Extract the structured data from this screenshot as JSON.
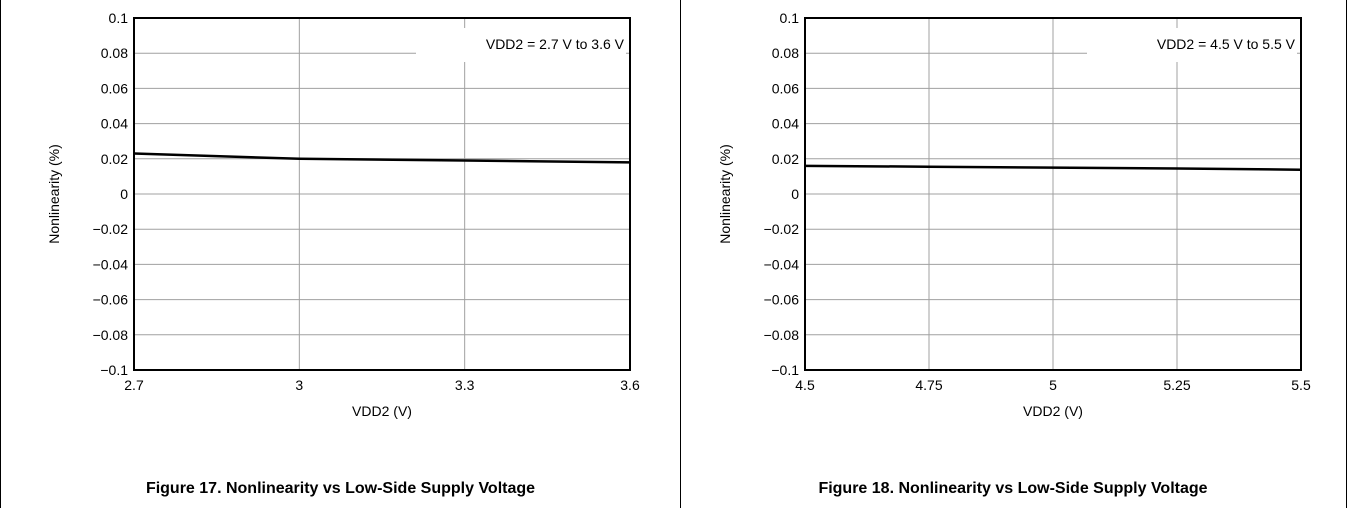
{
  "chart_data": [
    {
      "type": "line",
      "xlabel": "VDD2 (V)",
      "ylabel": "Nonlinearity (%)",
      "xlim": [
        2.7,
        3.6
      ],
      "ylim": [
        -0.1,
        0.1
      ],
      "xticks": [
        "2.7",
        "3",
        "3.3",
        "3.6"
      ],
      "xtick_values": [
        2.7,
        3.0,
        3.3,
        3.6
      ],
      "yticks": [
        "0.1",
        "0.08",
        "0.06",
        "0.04",
        "0.02",
        "0",
        "−0.02",
        "−0.04",
        "−0.06",
        "−0.08",
        "−0.1"
      ],
      "ytick_values": [
        0.1,
        0.08,
        0.06,
        0.04,
        0.02,
        0,
        -0.02,
        -0.04,
        -0.06,
        -0.08,
        -0.1
      ],
      "annotation": "VDD2 = 2.7 V to 3.6 V",
      "grid": true,
      "series": [
        {
          "x": [
            2.7,
            3.0,
            3.3,
            3.6
          ],
          "y": [
            0.023,
            0.02,
            0.019,
            0.018
          ]
        }
      ],
      "caption": "Figure 17. Nonlinearity vs Low-Side Supply Voltage"
    },
    {
      "type": "line",
      "xlabel": "VDD2 (V)",
      "ylabel": "Nonlinearity (%)",
      "xlim": [
        4.5,
        5.5
      ],
      "ylim": [
        -0.1,
        0.1
      ],
      "xticks": [
        "4.5",
        "4.75",
        "5",
        "5.25",
        "5.5"
      ],
      "xtick_values": [
        4.5,
        4.75,
        5.0,
        5.25,
        5.5
      ],
      "yticks": [
        "0.1",
        "0.08",
        "0.06",
        "0.04",
        "0.02",
        "0",
        "−0.02",
        "−0.04",
        "−0.06",
        "−0.08",
        "−0.1"
      ],
      "ytick_values": [
        0.1,
        0.08,
        0.06,
        0.04,
        0.02,
        0,
        -0.02,
        -0.04,
        -0.06,
        -0.08,
        -0.1
      ],
      "annotation": "VDD2 = 4.5 V to 5.5 V",
      "grid": true,
      "series": [
        {
          "x": [
            4.5,
            4.75,
            5.0,
            5.25,
            5.5
          ],
          "y": [
            0.016,
            0.0155,
            0.015,
            0.0145,
            0.0138
          ]
        }
      ],
      "caption": "Figure 18. Nonlinearity vs Low-Side Supply Voltage"
    }
  ]
}
